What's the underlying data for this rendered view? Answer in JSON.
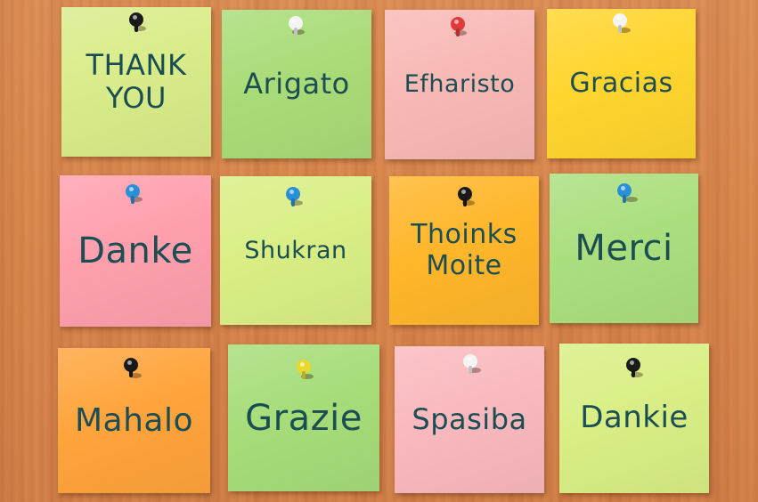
{
  "scene": {
    "background_color": "#d6844a",
    "notes": [
      {
        "text": "THANK\nYOU",
        "color": "#d9ec8a",
        "pin_color": "#1a1a1a"
      },
      {
        "text": "Arigato",
        "color": "#a9dc78",
        "pin_color": "#f4f4f4"
      },
      {
        "text": "Efharisto",
        "color": "#f8b9b5",
        "pin_color": "#e23a3a"
      },
      {
        "text": "Gracias",
        "color": "#ffd52e",
        "pin_color": "#f4f4f4"
      },
      {
        "text": "Danke",
        "color": "#ff9fae",
        "pin_color": "#2a8fd6"
      },
      {
        "text": "Shukran",
        "color": "#d9ef85",
        "pin_color": "#2a8fd6"
      },
      {
        "text": "Thoinks\nMoite",
        "color": "#ffb62a",
        "pin_color": "#1a1a1a"
      },
      {
        "text": "Merci",
        "color": "#aadf7e",
        "pin_color": "#2a8fd6"
      },
      {
        "text": "Mahalo",
        "color": "#ffa43c",
        "pin_color": "#1a1a1a"
      },
      {
        "text": "Grazie",
        "color": "#a6dd79",
        "pin_color": "#e9d92a"
      },
      {
        "text": "Spasiba",
        "color": "#f9b9be",
        "pin_color": "#f4f4f4"
      },
      {
        "text": "Dankie",
        "color": "#d9ef85",
        "pin_color": "#1a1a1a"
      }
    ]
  }
}
